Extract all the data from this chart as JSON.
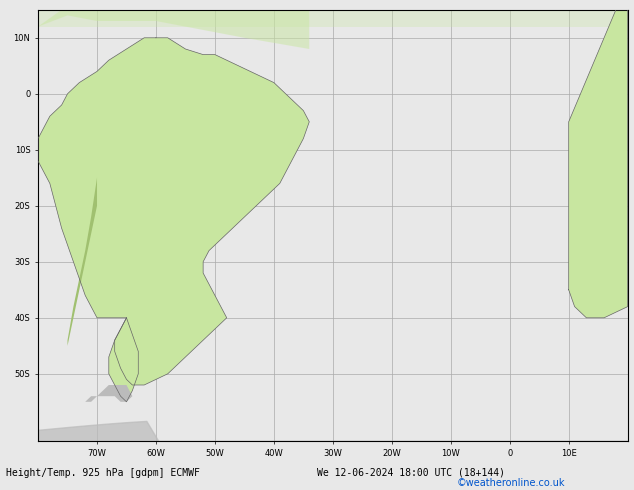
{
  "title_left": "Height/Temp. 925 hPa [gdpm] ECMWF",
  "title_right": "We 12-06-2024 18:00 UTC (18+144)",
  "copyright": "©weatheronline.co.uk",
  "background_ocean": "#e8e8e8",
  "background_land": "#c8e6a0",
  "grid_color": "#aaaaaa",
  "fig_bg": "#e8e8e8",
  "lon_min": -80,
  "lon_max": 20,
  "lat_min": -62,
  "lat_max": 15,
  "grid_lons": [
    -70,
    -60,
    -50,
    -40,
    -30,
    -20,
    -10,
    0,
    10
  ],
  "grid_lats": [
    -50,
    -40,
    -30,
    -20,
    -10,
    0,
    10
  ]
}
